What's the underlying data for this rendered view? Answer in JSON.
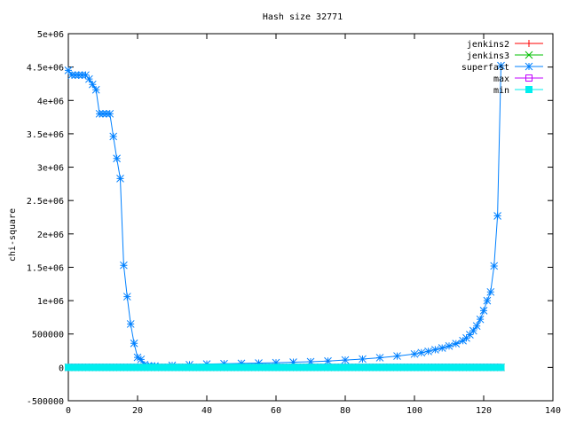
{
  "chart_data": {
    "type": "line",
    "title": "Hash size 32771",
    "xlabel": "",
    "ylabel": "chi-square",
    "xlim": [
      0,
      140
    ],
    "ylim": [
      -500000,
      5000000
    ],
    "x_ticks": [
      0,
      20,
      40,
      60,
      80,
      100,
      120,
      140
    ],
    "y_ticks": [
      -500000,
      0,
      500000,
      1000000,
      1500000,
      2000000,
      2500000,
      3000000,
      3500000,
      4000000,
      4500000,
      5000000
    ],
    "x_tick_labels": [
      "0",
      "20",
      "40",
      "60",
      "80",
      "100",
      "120",
      "140"
    ],
    "y_tick_labels": [
      "-500000",
      "0",
      "500000",
      "1e+06",
      "1.5e+06",
      "2e+06",
      "2.5e+06",
      "3e+06",
      "3.5e+06",
      "4e+06",
      "4.5e+06",
      "5e+06"
    ],
    "grid": false,
    "legend_position": "top-right",
    "series": [
      {
        "name": "jenkins2",
        "color": "#ff0000",
        "marker": "plus",
        "x": [
          0,
          125
        ],
        "y": [
          0,
          0
        ]
      },
      {
        "name": "jenkins3",
        "color": "#00c000",
        "marker": "cross",
        "x": [
          0,
          125
        ],
        "y": [
          0,
          0
        ]
      },
      {
        "name": "superfast",
        "color": "#0080ff",
        "marker": "star",
        "x": [
          0,
          1,
          2,
          3,
          4,
          5,
          6,
          7,
          8,
          9,
          10,
          11,
          12,
          13,
          14,
          15,
          16,
          17,
          18,
          19,
          20,
          21,
          22,
          23,
          24,
          25,
          30,
          35,
          40,
          45,
          50,
          55,
          60,
          65,
          70,
          75,
          80,
          85,
          90,
          95,
          100,
          102,
          104,
          106,
          108,
          110,
          112,
          114,
          115,
          116,
          117,
          118,
          119,
          120,
          121,
          122,
          123,
          124,
          125
        ],
        "y": [
          4450000,
          4380000,
          4380000,
          4380000,
          4380000,
          4380000,
          4320000,
          4240000,
          4160000,
          3800000,
          3800000,
          3800000,
          3800000,
          3460000,
          3130000,
          2830000,
          1530000,
          1060000,
          650000,
          360000,
          150000,
          120000,
          40000,
          20000,
          20000,
          20000,
          30000,
          40000,
          50000,
          55000,
          60000,
          65000,
          70000,
          78000,
          85000,
          95000,
          110000,
          125000,
          145000,
          170000,
          200000,
          220000,
          240000,
          265000,
          290000,
          320000,
          355000,
          400000,
          440000,
          490000,
          550000,
          620000,
          720000,
          850000,
          1000000,
          1130000,
          1520000,
          2270000,
          4520000
        ]
      },
      {
        "name": "max",
        "color": "#c000ff",
        "marker": "square",
        "x": [
          0,
          125
        ],
        "y": [
          0,
          0
        ]
      },
      {
        "name": "min",
        "color": "#00eeee",
        "marker": "filled-square",
        "x": [
          0,
          125
        ],
        "y": [
          0,
          0
        ]
      }
    ]
  }
}
